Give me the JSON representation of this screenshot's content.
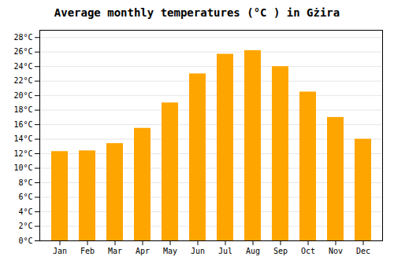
{
  "chart_data": {
    "type": "bar",
    "title": "Average monthly temperatures (°C ) in Gżira",
    "categories": [
      "Jan",
      "Feb",
      "Mar",
      "Apr",
      "May",
      "Jun",
      "Jul",
      "Aug",
      "Sep",
      "Oct",
      "Nov",
      "Dec"
    ],
    "values": [
      12.3,
      12.4,
      13.4,
      15.5,
      19.0,
      23.0,
      25.7,
      26.2,
      24.0,
      20.5,
      17.0,
      14.0
    ],
    "color": "#FFA500",
    "ylim": [
      0,
      29
    ],
    "yticks": [
      {
        "value": 0,
        "label": "0°C"
      },
      {
        "value": 2,
        "label": "2°C"
      },
      {
        "value": 4,
        "label": "4°C"
      },
      {
        "value": 6,
        "label": "6°C"
      },
      {
        "value": 8,
        "label": "8°C"
      },
      {
        "value": 10,
        "label": "10°C"
      },
      {
        "value": 12,
        "label": "12°C"
      },
      {
        "value": 14,
        "label": "14°C"
      },
      {
        "value": 16,
        "label": "16°C"
      },
      {
        "value": 18,
        "label": "18°C"
      },
      {
        "value": 20,
        "label": "20°C"
      },
      {
        "value": 22,
        "label": "22°C"
      },
      {
        "value": 24,
        "label": "24°C"
      },
      {
        "value": 26,
        "label": "26°C"
      },
      {
        "value": 28,
        "label": "28°C"
      }
    ],
    "grid": true
  }
}
